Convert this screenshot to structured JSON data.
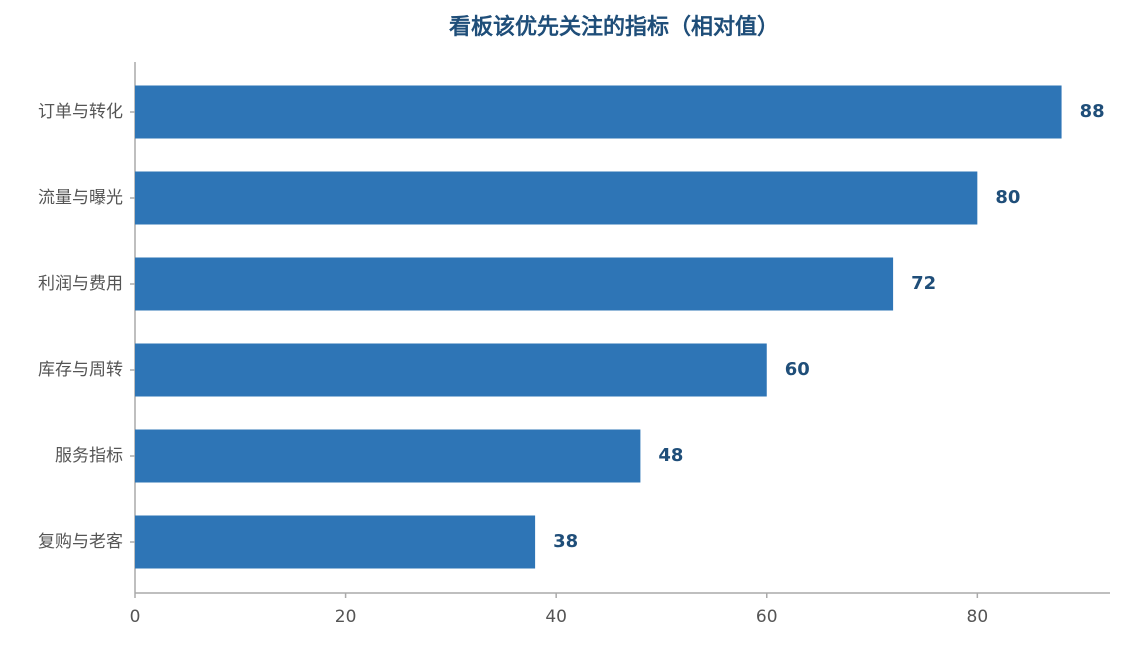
{
  "chart_data": {
    "type": "bar",
    "orientation": "horizontal",
    "title": "看板该优先关注的指标（相对值）",
    "categories": [
      "订单与转化",
      "流量与曝光",
      "利润与费用",
      "库存与周转",
      "服务指标",
      "复购与老客"
    ],
    "values": [
      88,
      80,
      72,
      60,
      48,
      38
    ],
    "color": "#2e75b6",
    "xlim": [
      0,
      92.6
    ],
    "xticks": [
      0,
      20,
      40,
      60,
      80
    ],
    "grid": false
  }
}
